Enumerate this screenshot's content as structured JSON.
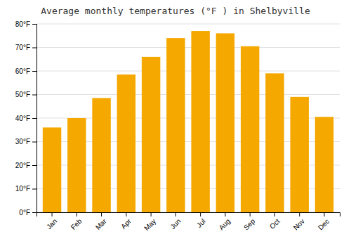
{
  "chart_data": {
    "type": "bar",
    "title": "Average monthly temperatures (°F ) in Shelbyville",
    "categories": [
      "Jan",
      "Feb",
      "Mar",
      "Apr",
      "May",
      "Jun",
      "Jul",
      "Aug",
      "Sep",
      "Oct",
      "Nov",
      "Dec"
    ],
    "values": [
      36,
      40,
      48.5,
      58.5,
      66,
      74,
      77,
      76,
      70.5,
      59,
      49,
      40.5
    ],
    "color": "#F5A800",
    "ylim": [
      0,
      80
    ],
    "yticks": [
      {
        "value": 0,
        "label": "0°F"
      },
      {
        "value": 10,
        "label": "10°F"
      },
      {
        "value": 20,
        "label": "20°F"
      },
      {
        "value": 30,
        "label": "30°F"
      },
      {
        "value": 40,
        "label": "40°F"
      },
      {
        "value": 50,
        "label": "50°F"
      },
      {
        "value": 60,
        "label": "60°F"
      },
      {
        "value": 70,
        "label": "70°F"
      },
      {
        "value": 80,
        "label": "80°F"
      }
    ],
    "grid": true
  }
}
